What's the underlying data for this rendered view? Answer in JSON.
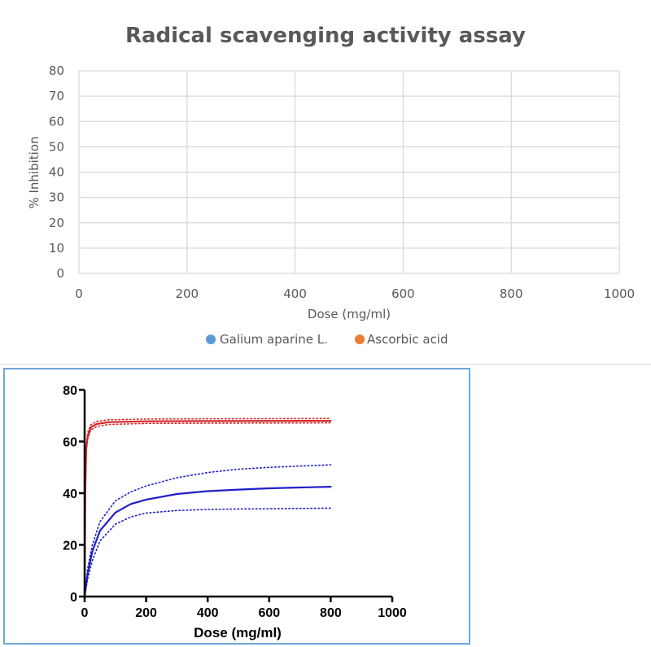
{
  "chart_data": [
    {
      "type": "scatter",
      "title": "Radical scavenging activity assay",
      "xlabel": "Dose (mg/ml)",
      "ylabel": "% Inhibition",
      "xlim": [
        0,
        1000
      ],
      "ylim": [
        0,
        80
      ],
      "x_ticks": [
        "0",
        "200",
        "400",
        "600",
        "800",
        "1000"
      ],
      "y_ticks": [
        "0",
        "10",
        "20",
        "30",
        "40",
        "50",
        "60",
        "70",
        "80"
      ],
      "grid": true,
      "legend_position": "bottom",
      "series": [
        {
          "name": "Galium aparine L.",
          "color": "#5b9bd5",
          "x": [],
          "y": []
        },
        {
          "name": "Ascorbic acid",
          "color": "#ed7d31",
          "x": [],
          "y": []
        }
      ]
    },
    {
      "type": "line",
      "title": "",
      "xlabel": "Dose (mg/ml)",
      "ylabel": "",
      "xlim": [
        0,
        1000
      ],
      "ylim": [
        0,
        80
      ],
      "x_ticks": [
        "0",
        "200",
        "400",
        "600",
        "800",
        "1000"
      ],
      "y_ticks": [
        "0",
        "20",
        "40",
        "60",
        "80"
      ],
      "grid": false,
      "series": [
        {
          "color": "#d62728",
          "style": "solid",
          "x": [
            0,
            2,
            5,
            10,
            20,
            40,
            80,
            200,
            400,
            800
          ],
          "y": [
            0,
            40,
            57,
            62,
            65.5,
            66.8,
            67.5,
            67.8,
            67.9,
            68
          ]
        },
        {
          "color": "#d62728",
          "style": "dotted",
          "x": [
            0,
            2,
            5,
            10,
            20,
            40,
            80,
            200,
            400,
            800
          ],
          "y": [
            0,
            41,
            58,
            63.5,
            66.5,
            67.8,
            68.4,
            68.7,
            68.8,
            68.9
          ]
        },
        {
          "color": "#d62728",
          "style": "dotted",
          "x": [
            0,
            2,
            5,
            10,
            20,
            40,
            80,
            200,
            400,
            800
          ],
          "y": [
            0,
            39,
            56,
            61,
            64.5,
            65.8,
            66.6,
            67,
            67.1,
            67.2
          ]
        },
        {
          "color": "#1f1fc8",
          "style": "solid",
          "x": [
            0,
            10,
            25,
            50,
            100,
            150,
            200,
            300,
            400,
            500,
            600,
            700,
            800
          ],
          "y": [
            0,
            9,
            17.5,
            25.5,
            32.5,
            35.8,
            37.5,
            39.7,
            40.8,
            41.4,
            41.9,
            42.2,
            42.5
          ]
        },
        {
          "color": "#1f1fc8",
          "style": "dotted",
          "x": [
            0,
            10,
            25,
            50,
            100,
            150,
            200,
            300,
            400,
            500,
            600,
            700,
            800
          ],
          "y": [
            0,
            11,
            20,
            29,
            37,
            40.5,
            42.8,
            46,
            48,
            49.3,
            50,
            50.5,
            51
          ]
        },
        {
          "color": "#1f1fc8",
          "style": "dotted",
          "x": [
            0,
            10,
            25,
            50,
            100,
            150,
            200,
            300,
            400,
            500,
            600,
            700,
            800
          ],
          "y": [
            0,
            7,
            14,
            21.5,
            28,
            30.8,
            32.3,
            33.3,
            33.7,
            33.9,
            34,
            34.1,
            34.2
          ]
        }
      ]
    }
  ]
}
